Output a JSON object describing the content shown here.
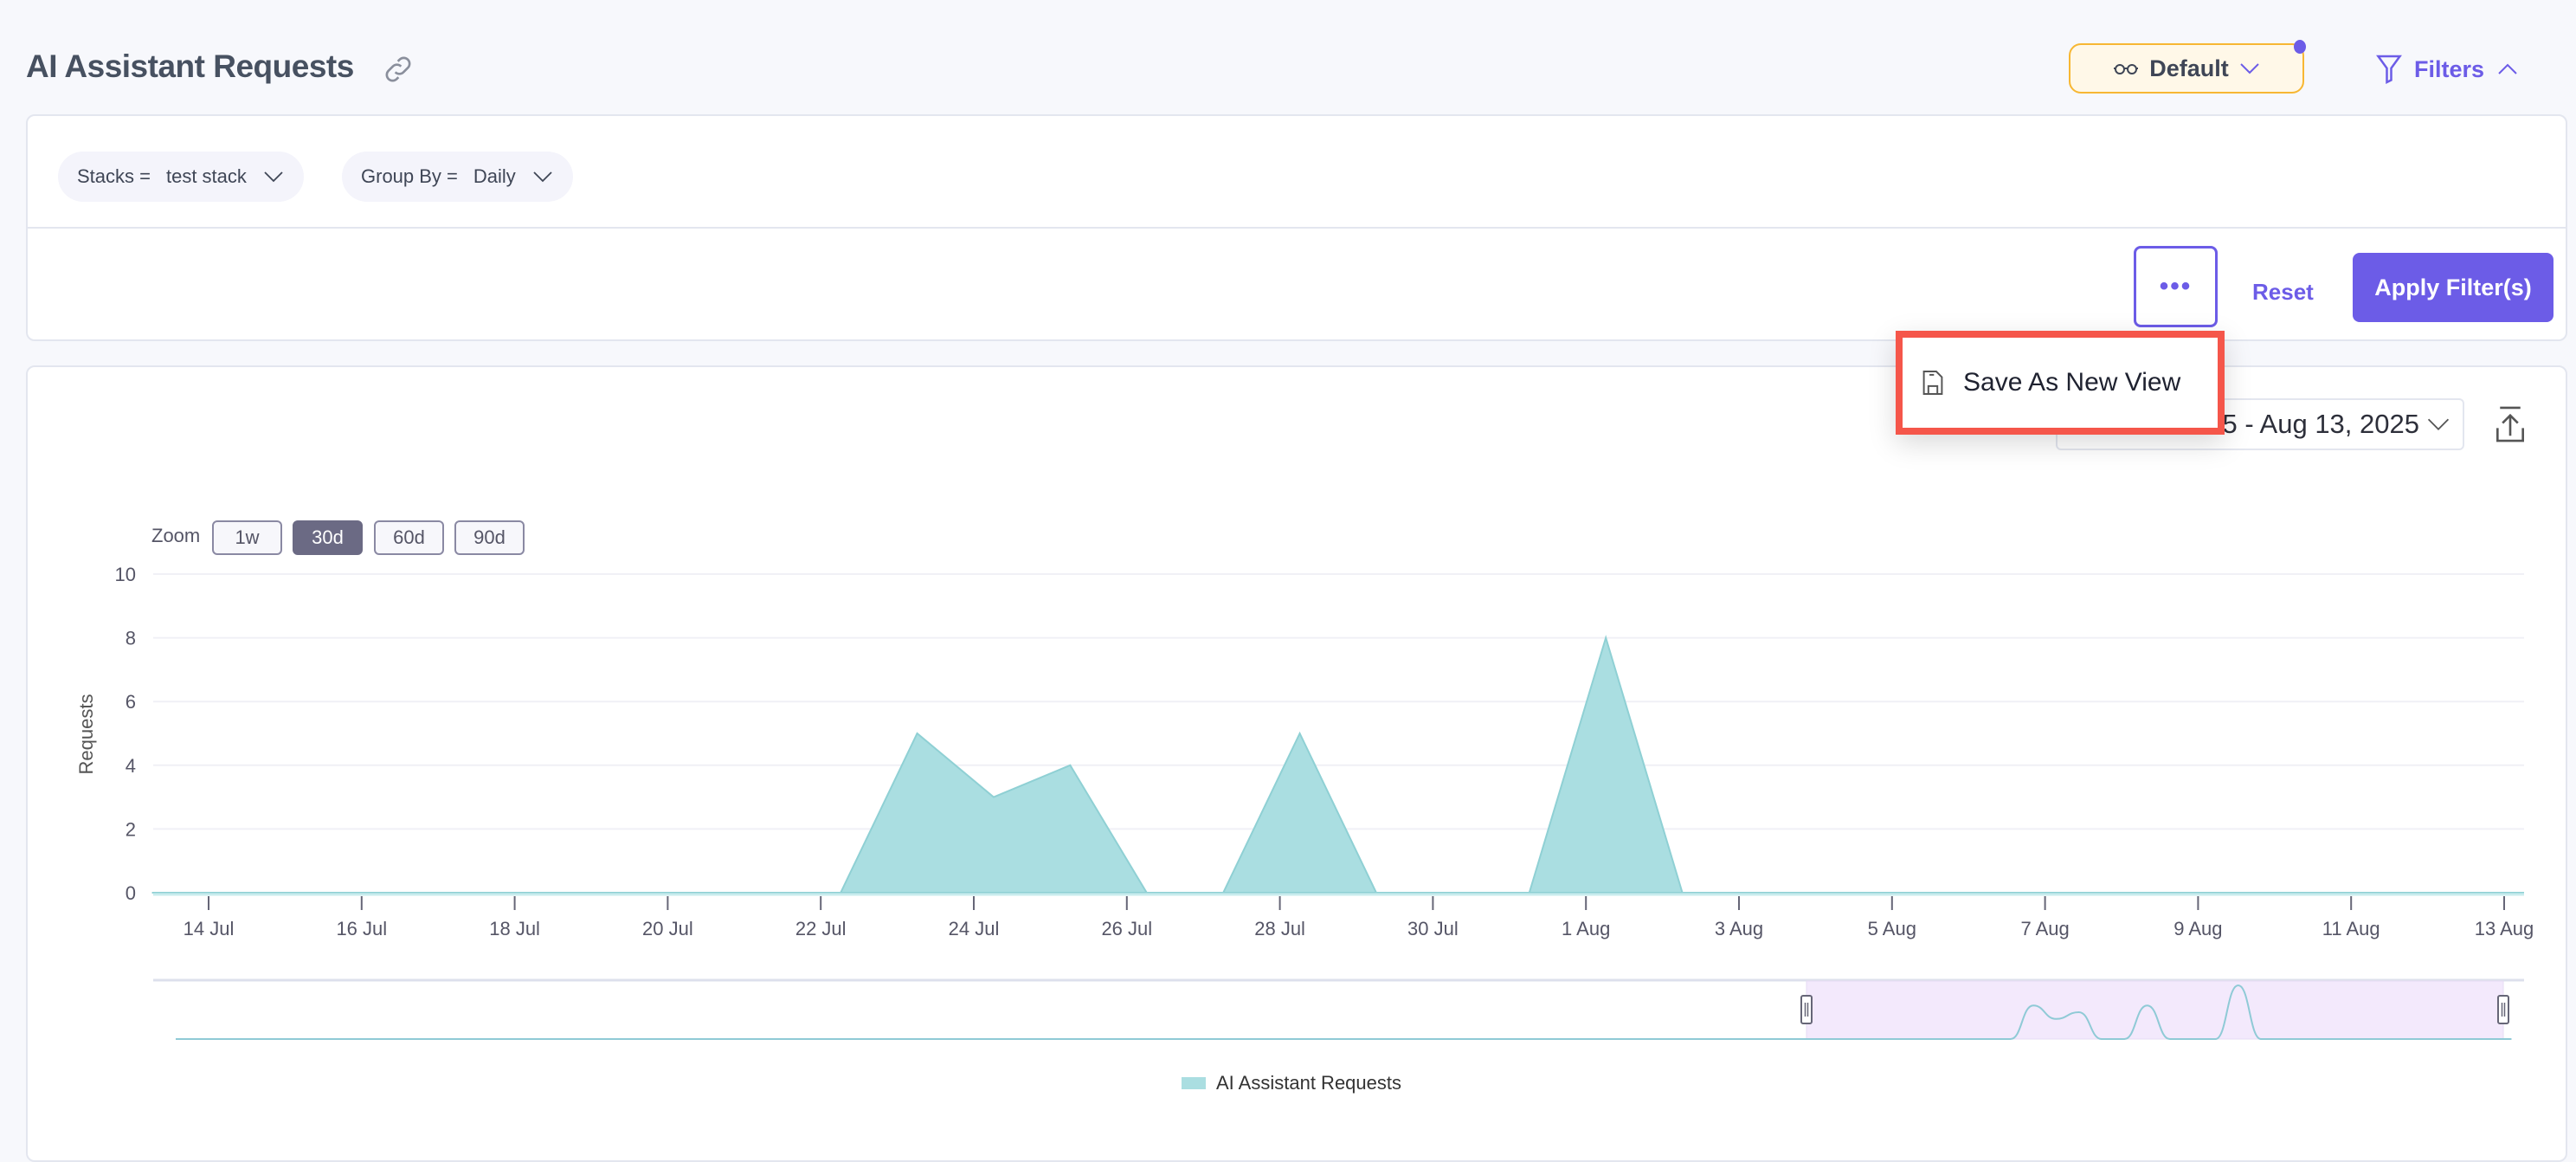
{
  "header": {
    "title": "AI Assistant Requests",
    "link_icon": "link-icon"
  },
  "view_selector": {
    "label": "Default",
    "icon": "glasses-icon"
  },
  "filters_toggle": {
    "label": "Filters",
    "icon": "filter-icon"
  },
  "filter_chips": [
    {
      "key": "Stacks =",
      "value": "test stack"
    },
    {
      "key": "Group By =",
      "value": "Daily"
    }
  ],
  "actions": {
    "more": "•••",
    "reset": "Reset",
    "apply": "Apply Filter(s)"
  },
  "menu": {
    "items": [
      {
        "label": "Save As New View",
        "icon": "save-icon"
      }
    ]
  },
  "date_picker": {
    "visible_text": "5 - Aug 13, 2025"
  },
  "zoom": {
    "label": "Zoom",
    "options": [
      "1w",
      "30d",
      "60d",
      "90d"
    ],
    "selected": "30d"
  },
  "colors": {
    "accent": "#6c5ce7",
    "series": "#aadee1",
    "highlight": "#f5564a",
    "navigator_selection": "#f3e9fc"
  },
  "chart_data": {
    "type": "area",
    "ylabel": "Requests",
    "ylim": [
      0,
      10
    ],
    "y_ticks": [
      "0",
      "2",
      "4",
      "6",
      "8",
      "10"
    ],
    "x_ticks": [
      "14 Jul",
      "16 Jul",
      "18 Jul",
      "20 Jul",
      "22 Jul",
      "24 Jul",
      "26 Jul",
      "28 Jul",
      "30 Jul",
      "1 Aug",
      "3 Aug",
      "5 Aug",
      "7 Aug",
      "9 Aug",
      "11 Aug",
      "13 Aug"
    ],
    "grid": true,
    "legend": "bottom",
    "series": [
      {
        "name": "AI Assistant Requests",
        "x": [
          "13 Jul",
          "14 Jul",
          "15 Jul",
          "16 Jul",
          "17 Jul",
          "18 Jul",
          "19 Jul",
          "20 Jul",
          "21 Jul",
          "22 Jul",
          "23 Jul",
          "24 Jul",
          "25 Jul",
          "26 Jul",
          "27 Jul",
          "28 Jul",
          "29 Jul",
          "30 Jul",
          "31 Jul",
          "1 Aug",
          "2 Aug",
          "3 Aug",
          "4 Aug",
          "5 Aug",
          "6 Aug",
          "7 Aug",
          "8 Aug",
          "9 Aug",
          "10 Aug",
          "11 Aug",
          "12 Aug",
          "13 Aug"
        ],
        "values": [
          0,
          0,
          0,
          0,
          0,
          0,
          0,
          0,
          0,
          0,
          5,
          3,
          4,
          0,
          0,
          5,
          0,
          0,
          0,
          8,
          0,
          0,
          0,
          0,
          0,
          0,
          0,
          0,
          0,
          0,
          0,
          0
        ]
      }
    ]
  }
}
